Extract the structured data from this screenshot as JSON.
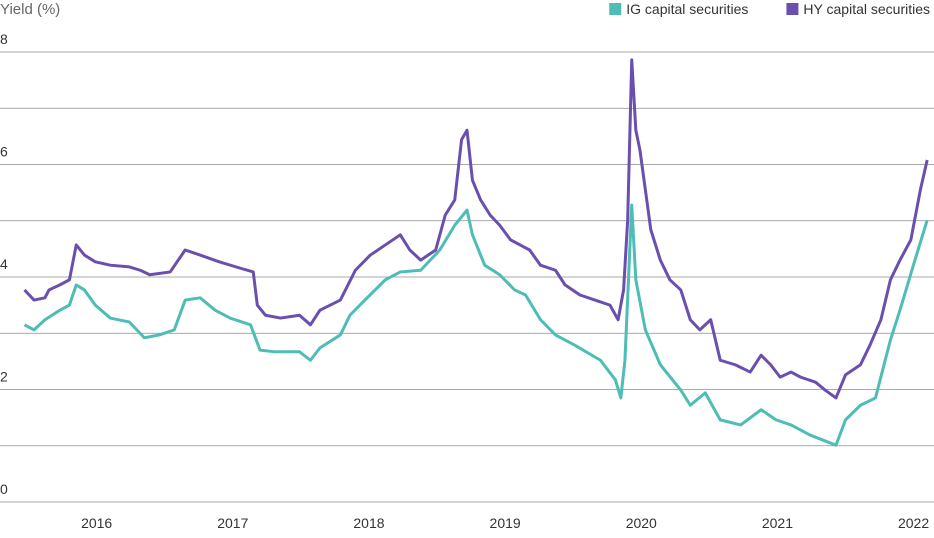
{
  "chart_data": {
    "type": "line",
    "y_axis_label": "Yield (%)",
    "legend": "top-right",
    "xlim": [
      2015.29,
      2022.15
    ],
    "xticks": [
      2016,
      2017,
      2018,
      2019,
      2020,
      2021,
      2022
    ],
    "ylim": [
      0,
      8
    ],
    "yticks": [
      0,
      2,
      4,
      6,
      8
    ],
    "minor_grid_yticks": [
      1,
      3,
      5,
      7
    ],
    "grid": true,
    "series": [
      {
        "name": "IG capital securities",
        "color": "#4dbdb6",
        "x": [
          2015.47,
          2015.54,
          2015.62,
          2015.73,
          2015.8,
          2015.85,
          2015.91,
          2015.99,
          2016.1,
          2016.24,
          2016.35,
          2016.46,
          2016.57,
          2016.65,
          2016.76,
          2016.87,
          2016.98,
          2017.13,
          2017.2,
          2017.31,
          2017.49,
          2017.57,
          2017.64,
          2017.79,
          2017.86,
          2017.97,
          2018.12,
          2018.23,
          2018.38,
          2018.52,
          2018.63,
          2018.72,
          2018.76,
          2018.85,
          2018.96,
          2019.07,
          2019.15,
          2019.26,
          2019.37,
          2019.51,
          2019.7,
          2019.81,
          2019.85,
          2019.88,
          2019.93,
          2019.96,
          2020.03,
          2020.14,
          2020.29,
          2020.36,
          2020.47,
          2020.58,
          2020.73,
          2020.88,
          2020.99,
          2021.1,
          2021.24,
          2021.43,
          2021.5,
          2021.61,
          2021.72,
          2021.83,
          2021.9,
          2022.01,
          2022.1
        ],
        "values": [
          3.15,
          3.06,
          3.24,
          3.41,
          3.5,
          3.86,
          3.77,
          3.5,
          3.27,
          3.2,
          2.92,
          2.97,
          3.06,
          3.59,
          3.63,
          3.41,
          3.27,
          3.15,
          2.7,
          2.67,
          2.67,
          2.52,
          2.74,
          2.97,
          3.32,
          3.59,
          3.95,
          4.09,
          4.12,
          4.48,
          4.92,
          5.19,
          4.75,
          4.21,
          4.04,
          3.77,
          3.68,
          3.24,
          2.97,
          2.79,
          2.52,
          2.17,
          1.85,
          2.52,
          5.28,
          3.95,
          3.06,
          2.44,
          1.99,
          1.72,
          1.94,
          1.46,
          1.37,
          1.64,
          1.46,
          1.37,
          1.19,
          1.01,
          1.46,
          1.72,
          1.85,
          2.88,
          3.41,
          4.3,
          5.01
        ]
      },
      {
        "name": "HY capital securities",
        "color": "#6a4fae",
        "x": [
          2015.47,
          2015.54,
          2015.62,
          2015.65,
          2015.73,
          2015.8,
          2015.85,
          2015.91,
          2015.99,
          2016.1,
          2016.24,
          2016.32,
          2016.39,
          2016.54,
          2016.65,
          2016.76,
          2016.9,
          2017.05,
          2017.15,
          2017.18,
          2017.24,
          2017.35,
          2017.49,
          2017.57,
          2017.64,
          2017.79,
          2017.9,
          2018.01,
          2018.12,
          2018.23,
          2018.3,
          2018.38,
          2018.49,
          2018.56,
          2018.63,
          2018.68,
          2018.72,
          2018.76,
          2018.82,
          2018.89,
          2018.96,
          2019.04,
          2019.11,
          2019.18,
          2019.26,
          2019.37,
          2019.44,
          2019.55,
          2019.66,
          2019.77,
          2019.83,
          2019.87,
          2019.9,
          2019.93,
          2019.96,
          2019.99,
          2020.03,
          2020.07,
          2020.14,
          2020.21,
          2020.29,
          2020.36,
          2020.43,
          2020.51,
          2020.58,
          2020.69,
          2020.8,
          2020.88,
          2020.95,
          2021.02,
          2021.1,
          2021.17,
          2021.28,
          2021.35,
          2021.43,
          2021.5,
          2021.61,
          2021.68,
          2021.76,
          2021.83,
          2021.9,
          2021.98,
          2022.05,
          2022.1
        ],
        "values": [
          3.77,
          3.59,
          3.63,
          3.77,
          3.86,
          3.95,
          4.57,
          4.39,
          4.27,
          4.21,
          4.18,
          4.12,
          4.04,
          4.09,
          4.48,
          4.39,
          4.27,
          4.16,
          4.09,
          3.5,
          3.32,
          3.27,
          3.32,
          3.15,
          3.41,
          3.59,
          4.12,
          4.39,
          4.57,
          4.75,
          4.48,
          4.3,
          4.48,
          5.1,
          5.37,
          6.44,
          6.61,
          5.72,
          5.37,
          5.1,
          4.92,
          4.66,
          4.57,
          4.48,
          4.21,
          4.12,
          3.86,
          3.68,
          3.59,
          3.5,
          3.24,
          3.77,
          5.01,
          7.86,
          6.61,
          6.26,
          5.55,
          4.84,
          4.3,
          3.95,
          3.77,
          3.24,
          3.06,
          3.24,
          2.52,
          2.44,
          2.31,
          2.61,
          2.44,
          2.22,
          2.31,
          2.22,
          2.13,
          1.99,
          1.85,
          2.26,
          2.44,
          2.79,
          3.24,
          3.95,
          4.3,
          4.66,
          5.55,
          6.08
        ]
      }
    ]
  }
}
